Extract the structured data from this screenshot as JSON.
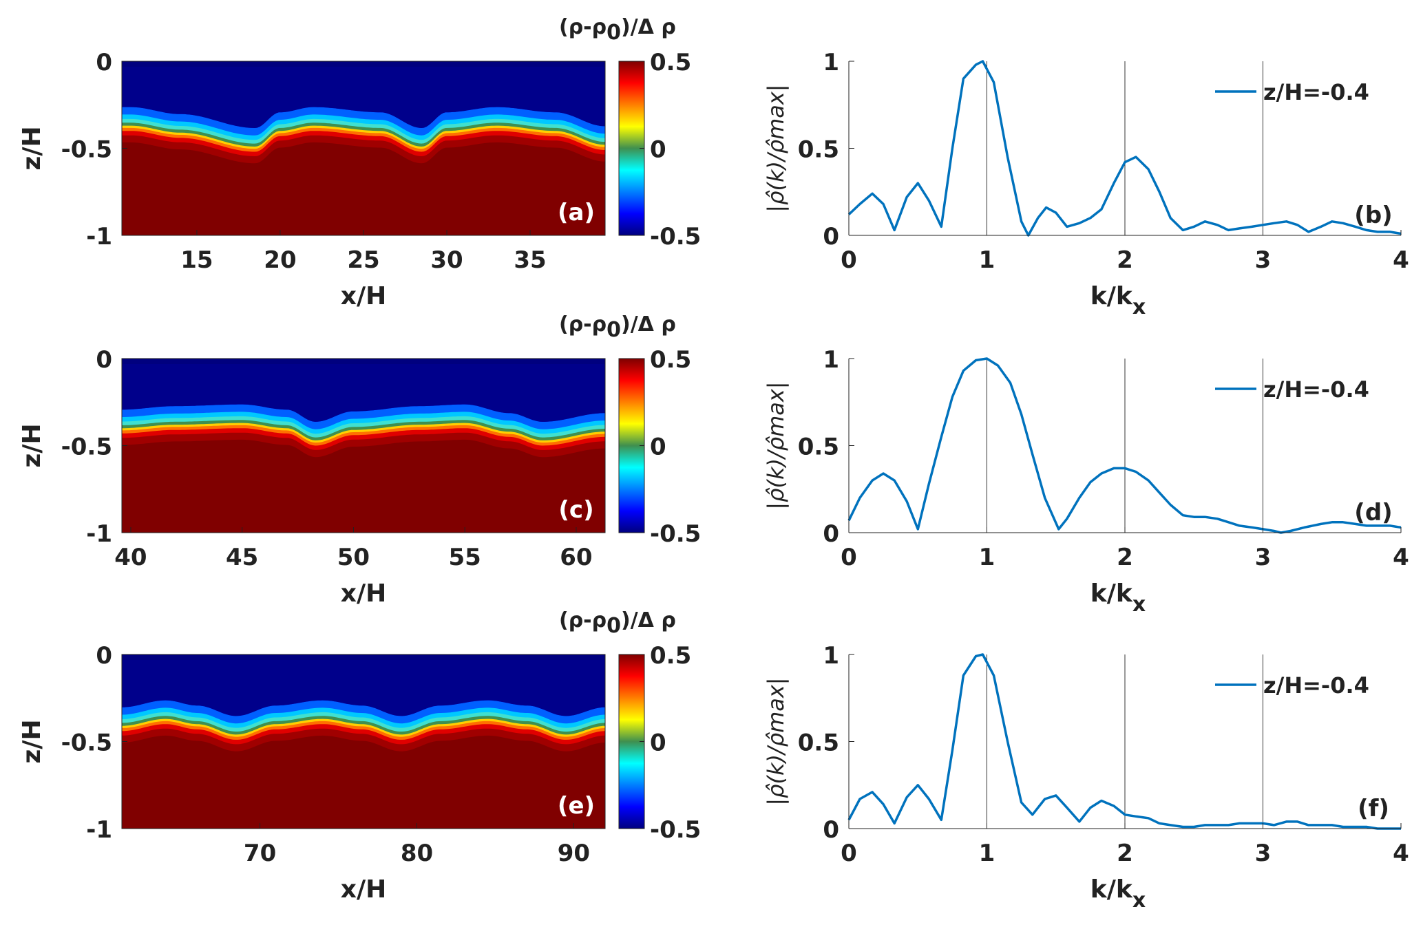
{
  "colorbar": {
    "title_main": "(ρ-ρ",
    "title_sub": "0",
    "title_tail": ")/Δ ρ",
    "ticks": [
      "0.5",
      "0",
      "-0.5"
    ],
    "range": [
      -0.5,
      0.5
    ]
  },
  "fields": [
    {
      "panel_label": "(a)",
      "xlabel": "x/H",
      "ylabel": "z/H",
      "xlim": [
        10.5,
        39.5
      ],
      "ylim": [
        -1,
        0
      ],
      "xticks": [
        15,
        20,
        25,
        30,
        35
      ],
      "yticks": [
        0,
        -0.5,
        -1
      ],
      "yticklabels": [
        "0",
        "-0.5",
        "-1"
      ],
      "interface_base_z": -0.4,
      "interface_z_profile": [
        -0.37,
        -0.41,
        -0.49,
        -0.4,
        -0.37,
        -0.4,
        -0.49,
        -0.4,
        -0.37,
        -0.4,
        -0.48
      ],
      "profile_x": [
        11,
        14,
        18.5,
        20,
        22,
        26,
        28.5,
        30,
        33,
        36.5,
        39.5
      ]
    },
    {
      "panel_label": "(c)",
      "xlabel": "x/H",
      "ylabel": "z/H",
      "xlim": [
        39.6,
        61.3
      ],
      "ylim": [
        -1,
        0
      ],
      "xticks": [
        40,
        45,
        50,
        55,
        60
      ],
      "yticks": [
        0,
        -0.5,
        -1
      ],
      "yticklabels": [
        "0",
        "-0.5",
        "-1"
      ],
      "interface_base_z": -0.4,
      "interface_z_profile": [
        -0.4,
        -0.38,
        -0.37,
        -0.4,
        -0.47,
        -0.41,
        -0.38,
        -0.37,
        -0.42,
        -0.47,
        -0.42
      ],
      "profile_x": [
        39.6,
        42,
        45,
        47,
        48.3,
        50,
        53,
        55,
        57,
        58.5,
        61.3
      ]
    },
    {
      "panel_label": "(e)",
      "xlabel": "x/H",
      "ylabel": "z/H",
      "xlim": [
        61.2,
        92
      ],
      "ylim": [
        -1,
        0
      ],
      "xticks": [
        70,
        80,
        90
      ],
      "yticks": [
        0,
        -0.5,
        -1
      ],
      "yticklabels": [
        "0",
        "-0.5",
        "-1"
      ],
      "interface_base_z": -0.4,
      "interface_z_profile": [
        -0.41,
        -0.37,
        -0.4,
        -0.46,
        -0.4,
        -0.37,
        -0.4,
        -0.46,
        -0.4,
        -0.37,
        -0.4,
        -0.46,
        -0.41
      ],
      "profile_x": [
        61.2,
        64,
        66,
        68.5,
        71,
        74,
        76.5,
        79,
        81.5,
        84.5,
        87,
        89.5,
        92
      ]
    }
  ],
  "chart_data": [
    {
      "type": "line",
      "panel_label": "(b)",
      "xlabel_main": "k/k",
      "xlabel_sub": "x",
      "ylabel": "|ρ̂(k)/ρ̂max|",
      "xlim": [
        0,
        4
      ],
      "ylim": [
        0,
        1
      ],
      "xticks": [
        0,
        1,
        2,
        3,
        4
      ],
      "yticks": [
        0,
        0.5,
        1
      ],
      "ytick_labels": [
        "0",
        "0.5",
        "1"
      ],
      "vlines": [
        1,
        2,
        3
      ],
      "legend_position": "top-right",
      "series": [
        {
          "name": "z/H=-0.4",
          "color": "#0072BD",
          "x": [
            0,
            0.08,
            0.17,
            0.25,
            0.33,
            0.42,
            0.5,
            0.58,
            0.67,
            0.75,
            0.83,
            0.92,
            0.97,
            1.05,
            1.15,
            1.25,
            1.3,
            1.37,
            1.43,
            1.5,
            1.58,
            1.67,
            1.75,
            1.83,
            1.92,
            2.0,
            2.08,
            2.17,
            2.25,
            2.33,
            2.42,
            2.5,
            2.58,
            2.67,
            2.75,
            2.83,
            2.92,
            3.0,
            3.08,
            3.17,
            3.25,
            3.33,
            3.42,
            3.5,
            3.58,
            3.67,
            3.75,
            3.83,
            3.92,
            4.0
          ],
          "y": [
            0.12,
            0.18,
            0.24,
            0.18,
            0.03,
            0.22,
            0.3,
            0.2,
            0.05,
            0.5,
            0.9,
            0.98,
            1.0,
            0.88,
            0.45,
            0.08,
            0.0,
            0.1,
            0.16,
            0.13,
            0.05,
            0.07,
            0.1,
            0.15,
            0.3,
            0.42,
            0.45,
            0.38,
            0.25,
            0.1,
            0.03,
            0.05,
            0.08,
            0.06,
            0.03,
            0.04,
            0.05,
            0.06,
            0.07,
            0.08,
            0.06,
            0.02,
            0.05,
            0.08,
            0.07,
            0.05,
            0.03,
            0.02,
            0.02,
            0.01
          ]
        }
      ]
    },
    {
      "type": "line",
      "panel_label": "(d)",
      "xlabel_main": "k/k",
      "xlabel_sub": "x",
      "ylabel": "|ρ̂(k)/ρ̂max|",
      "xlim": [
        0,
        4
      ],
      "ylim": [
        0,
        1
      ],
      "xticks": [
        0,
        1,
        2,
        3,
        4
      ],
      "yticks": [
        0,
        0.5,
        1
      ],
      "ytick_labels": [
        "0",
        "0.5",
        "1"
      ],
      "vlines": [
        1,
        2,
        3
      ],
      "legend_position": "top-right",
      "series": [
        {
          "name": "z/H=-0.4",
          "color": "#0072BD",
          "x": [
            0,
            0.08,
            0.17,
            0.25,
            0.33,
            0.42,
            0.5,
            0.58,
            0.67,
            0.75,
            0.83,
            0.92,
            1.0,
            1.08,
            1.17,
            1.25,
            1.33,
            1.42,
            1.52,
            1.58,
            1.67,
            1.75,
            1.83,
            1.92,
            2.0,
            2.08,
            2.17,
            2.25,
            2.33,
            2.42,
            2.5,
            2.58,
            2.67,
            2.75,
            2.83,
            2.92,
            3.0,
            3.08,
            3.13,
            3.2,
            3.3,
            3.42,
            3.5,
            3.58,
            3.67,
            3.75,
            3.83,
            3.92,
            4.0
          ],
          "y": [
            0.07,
            0.2,
            0.3,
            0.34,
            0.3,
            0.18,
            0.02,
            0.28,
            0.55,
            0.78,
            0.93,
            0.99,
            1.0,
            0.96,
            0.86,
            0.68,
            0.45,
            0.2,
            0.02,
            0.08,
            0.2,
            0.29,
            0.34,
            0.37,
            0.37,
            0.35,
            0.3,
            0.23,
            0.16,
            0.1,
            0.09,
            0.09,
            0.08,
            0.06,
            0.04,
            0.03,
            0.02,
            0.01,
            0.0,
            0.01,
            0.03,
            0.05,
            0.06,
            0.06,
            0.05,
            0.04,
            0.04,
            0.04,
            0.03
          ]
        }
      ]
    },
    {
      "type": "line",
      "panel_label": "(f)",
      "xlabel_main": "k/k",
      "xlabel_sub": "x",
      "ylabel": "|ρ̂(k)/ρ̂max|",
      "xlim": [
        0,
        4
      ],
      "ylim": [
        0,
        1
      ],
      "xticks": [
        0,
        1,
        2,
        3,
        4
      ],
      "yticks": [
        0,
        0.5,
        1
      ],
      "ytick_labels": [
        "0",
        "0.5",
        "1"
      ],
      "vlines": [
        1,
        2,
        3
      ],
      "legend_position": "top-right",
      "series": [
        {
          "name": "z/H=-0.4",
          "color": "#0072BD",
          "x": [
            0,
            0.08,
            0.17,
            0.25,
            0.33,
            0.42,
            0.5,
            0.58,
            0.67,
            0.75,
            0.83,
            0.92,
            0.97,
            1.05,
            1.15,
            1.25,
            1.33,
            1.42,
            1.5,
            1.58,
            1.67,
            1.75,
            1.83,
            1.92,
            2.0,
            2.08,
            2.17,
            2.25,
            2.33,
            2.42,
            2.5,
            2.58,
            2.67,
            2.75,
            2.83,
            2.92,
            3.0,
            3.08,
            3.17,
            3.25,
            3.33,
            3.42,
            3.5,
            3.58,
            3.67,
            3.75,
            3.83,
            3.92,
            4.0
          ],
          "y": [
            0.05,
            0.17,
            0.21,
            0.14,
            0.03,
            0.18,
            0.25,
            0.17,
            0.05,
            0.45,
            0.88,
            0.99,
            1.0,
            0.88,
            0.5,
            0.15,
            0.08,
            0.17,
            0.19,
            0.12,
            0.04,
            0.12,
            0.16,
            0.13,
            0.08,
            0.07,
            0.06,
            0.03,
            0.02,
            0.01,
            0.01,
            0.02,
            0.02,
            0.02,
            0.03,
            0.03,
            0.03,
            0.02,
            0.04,
            0.04,
            0.02,
            0.02,
            0.02,
            0.01,
            0.01,
            0.01,
            0.0,
            0.0,
            0.0
          ]
        }
      ]
    }
  ]
}
